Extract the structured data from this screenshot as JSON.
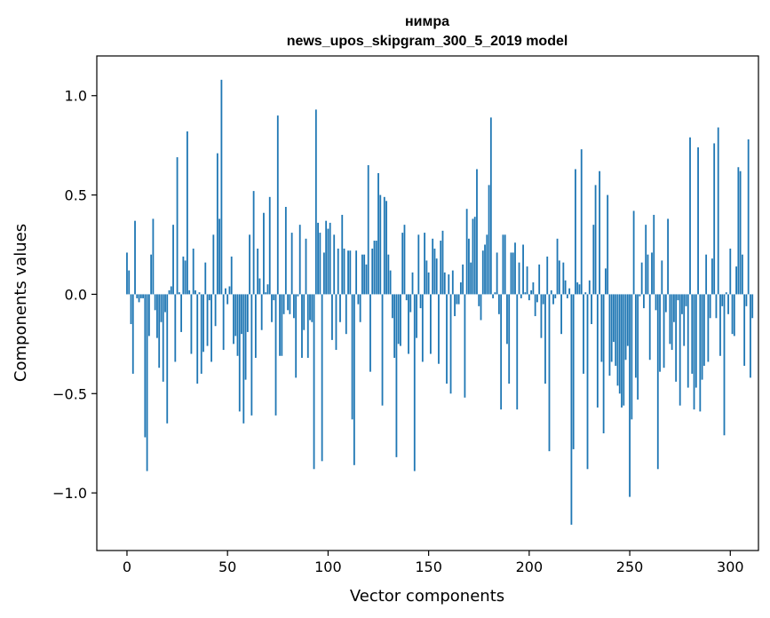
{
  "chart_data": {
    "type": "bar",
    "title_lines": [
      "нимра",
      "news_upos_skipgram_300_5_2019 model"
    ],
    "xlabel": "Vector components",
    "ylabel": "Components values",
    "xlim": [
      -15,
      314
    ],
    "ylim": [
      -1.29,
      1.2
    ],
    "xticks": [
      0,
      50,
      100,
      150,
      200,
      250,
      300
    ],
    "xtick_labels": [
      "0",
      "50",
      "100",
      "150",
      "200",
      "250",
      "300"
    ],
    "yticks": [
      -1.0,
      -0.5,
      0.0,
      0.5,
      1.0
    ],
    "ytick_labels": [
      "−1.0",
      "−0.5",
      "0.0",
      "0.5",
      "1.0"
    ],
    "grid": false,
    "bar_color": "#1f77b4",
    "bar_width": 0.8,
    "values": [
      0.21,
      0.12,
      -0.15,
      -0.4,
      0.37,
      -0.02,
      -0.04,
      -0.02,
      -0.02,
      -0.72,
      -0.89,
      -0.21,
      0.2,
      0.38,
      -0.08,
      -0.22,
      -0.37,
      -0.14,
      -0.44,
      -0.09,
      -0.65,
      0.02,
      0.04,
      0.35,
      -0.34,
      0.69,
      0.01,
      -0.19,
      0.19,
      0.17,
      0.82,
      0.02,
      -0.3,
      0.23,
      0.02,
      -0.45,
      0.01,
      -0.4,
      -0.29,
      0.16,
      -0.26,
      -0.03,
      -0.34,
      0.3,
      -0.16,
      0.71,
      0.38,
      1.08,
      -0.28,
      0.03,
      -0.05,
      0.04,
      0.19,
      -0.25,
      -0.21,
      -0.31,
      -0.59,
      -0.2,
      -0.65,
      -0.43,
      -0.19,
      0.3,
      -0.61,
      0.52,
      -0.32,
      0.23,
      0.08,
      -0.18,
      0.41,
      0.01,
      0.05,
      0.49,
      -0.14,
      -0.03,
      -0.61,
      0.9,
      -0.31,
      -0.31,
      -0.1,
      0.44,
      -0.08,
      -0.1,
      0.31,
      -0.12,
      -0.42,
      -0.01,
      0.35,
      -0.32,
      -0.18,
      0.28,
      -0.32,
      -0.13,
      -0.14,
      -0.88,
      0.93,
      0.36,
      0.31,
      -0.84,
      0.21,
      0.37,
      0.33,
      0.36,
      -0.23,
      0.3,
      -0.28,
      0.23,
      -0.14,
      0.4,
      0.23,
      -0.2,
      0.22,
      0.22,
      -0.63,
      -0.86,
      0.22,
      -0.05,
      -0.14,
      0.2,
      0.2,
      0.15,
      0.65,
      -0.39,
      0.23,
      0.27,
      0.27,
      0.61,
      0.5,
      -0.56,
      0.49,
      0.47,
      0.2,
      0.12,
      -0.12,
      -0.32,
      -0.82,
      -0.25,
      -0.26,
      0.31,
      0.35,
      -0.03,
      -0.3,
      -0.09,
      0.11,
      -0.89,
      -0.22,
      0.3,
      -0.07,
      -0.34,
      0.31,
      0.17,
      0.11,
      -0.3,
      0.28,
      0.23,
      0.18,
      -0.35,
      0.27,
      0.32,
      0.11,
      -0.45,
      0.1,
      -0.5,
      0.12,
      -0.11,
      -0.05,
      -0.05,
      0.06,
      0.15,
      -0.52,
      0.43,
      0.28,
      0.16,
      0.38,
      0.39,
      0.63,
      -0.06,
      -0.13,
      0.22,
      0.25,
      0.3,
      0.55,
      0.89,
      -0.02,
      0.01,
      0.21,
      -0.1,
      -0.58,
      0.3,
      0.3,
      -0.25,
      -0.45,
      0.21,
      0.21,
      0.26,
      -0.58,
      0.16,
      -0.02,
      0.25,
      0.01,
      0.14,
      -0.03,
      0.02,
      0.06,
      -0.11,
      -0.04,
      0.15,
      -0.22,
      -0.05,
      -0.45,
      0.19,
      -0.79,
      0.02,
      -0.05,
      -0.02,
      0.28,
      0.17,
      -0.2,
      0.16,
      0.07,
      -0.02,
      0.03,
      -1.16,
      -0.78,
      0.63,
      0.06,
      0.05,
      0.73,
      -0.4,
      0.01,
      -0.88,
      0.07,
      -0.15,
      0.35,
      0.55,
      -0.57,
      0.62,
      -0.34,
      -0.7,
      0.13,
      0.5,
      -0.41,
      -0.34,
      -0.24,
      -0.36,
      -0.46,
      -0.5,
      -0.57,
      -0.56,
      -0.33,
      -0.26,
      -1.02,
      -0.63,
      0.42,
      -0.42,
      -0.53,
      -0.01,
      0.16,
      -0.07,
      0.35,
      0.2,
      -0.33,
      0.21,
      0.4,
      -0.08,
      -0.88,
      -0.39,
      0.17,
      -0.37,
      -0.09,
      0.38,
      -0.25,
      -0.28,
      -0.14,
      -0.44,
      -0.03,
      -0.56,
      -0.1,
      -0.26,
      -0.06,
      -0.47,
      0.79,
      -0.4,
      -0.58,
      -0.47,
      0.74,
      -0.59,
      -0.43,
      -0.36,
      0.2,
      -0.34,
      -0.12,
      0.18,
      0.76,
      -0.12,
      0.84,
      -0.31,
      -0.06,
      -0.71,
      0.01,
      -0.1,
      0.23,
      -0.2,
      -0.21,
      0.14,
      0.64,
      0.62,
      0.2,
      -0.36,
      -0.06,
      0.78,
      -0.42,
      -0.12
    ]
  }
}
